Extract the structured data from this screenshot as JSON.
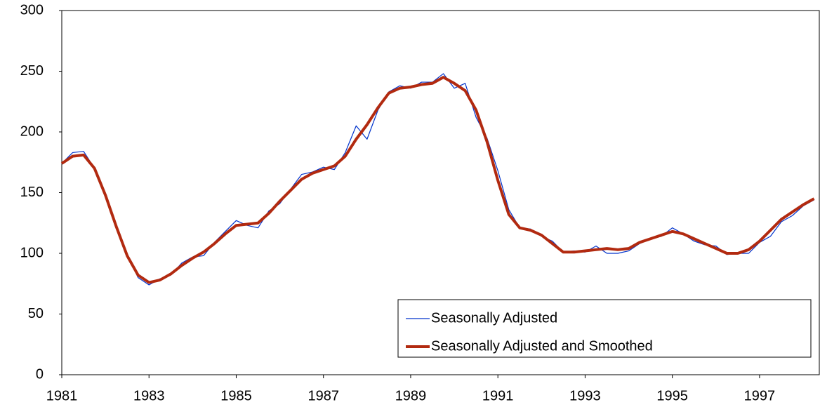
{
  "chart_data": {
    "type": "line",
    "x": [
      1981,
      1981.25,
      1981.5,
      1981.75,
      1982,
      1982.25,
      1982.5,
      1982.75,
      1983,
      1983.25,
      1983.5,
      1983.75,
      1984,
      1984.25,
      1984.5,
      1984.75,
      1985,
      1985.25,
      1985.5,
      1985.75,
      1986,
      1986.25,
      1986.5,
      1986.75,
      1987,
      1987.25,
      1987.5,
      1987.75,
      1988,
      1988.25,
      1988.5,
      1988.75,
      1989,
      1989.25,
      1989.5,
      1989.75,
      1990,
      1990.25,
      1990.5,
      1990.75,
      1991,
      1991.25,
      1991.5,
      1991.75,
      1992,
      1992.25,
      1992.5,
      1992.75,
      1993,
      1993.25,
      1993.5,
      1993.75,
      1994,
      1994.25,
      1994.5,
      1994.75,
      1995,
      1995.25,
      1995.5,
      1995.75,
      1996,
      1996.25,
      1996.5,
      1996.75,
      1997,
      1997.25,
      1997.5,
      1997.75,
      1998,
      1998.25
    ],
    "series": [
      {
        "name": "Seasonally Adjusted",
        "color": "#0033cc",
        "width": 1.2,
        "values": [
          174,
          183,
          184,
          170,
          147,
          121,
          99,
          80,
          74,
          79,
          82,
          92,
          97,
          98,
          109,
          118,
          127,
          123,
          121,
          135,
          141,
          153,
          165,
          167,
          171,
          169,
          183,
          205,
          194,
          218,
          233,
          238,
          236,
          241,
          241,
          248,
          236,
          240,
          212,
          195,
          168,
          136,
          121,
          120,
          114,
          110,
          101,
          102,
          101,
          106,
          100,
          100,
          102,
          108,
          112,
          114,
          121,
          116,
          110,
          107,
          106,
          99,
          100,
          100,
          109,
          114,
          126,
          131,
          139,
          144
        ]
      },
      {
        "name": "Seasonally Adjusted and Smoothed",
        "color": "#b22a10",
        "width": 4,
        "values": [
          174,
          180,
          181,
          170,
          148,
          122,
          98,
          82,
          76,
          78,
          83,
          90,
          96,
          101,
          108,
          116,
          123,
          124,
          125,
          133,
          143,
          152,
          161,
          166,
          169,
          172,
          180,
          194,
          206,
          220,
          232,
          236,
          237,
          239,
          240,
          245,
          240,
          234,
          218,
          192,
          160,
          132,
          121,
          119,
          115,
          108,
          101,
          101,
          102,
          103,
          104,
          103,
          104,
          109,
          112,
          115,
          118,
          116,
          112,
          108,
          104,
          100,
          100,
          103,
          110,
          119,
          128,
          134,
          140,
          145
        ]
      }
    ],
    "xlim": [
      1981,
      1998.37
    ],
    "xticks": [
      1981,
      1983,
      1985,
      1987,
      1989,
      1991,
      1993,
      1995,
      1997
    ],
    "ylim": [
      0,
      300
    ],
    "yticks": [
      0,
      50,
      100,
      150,
      200,
      250,
      300
    ]
  }
}
